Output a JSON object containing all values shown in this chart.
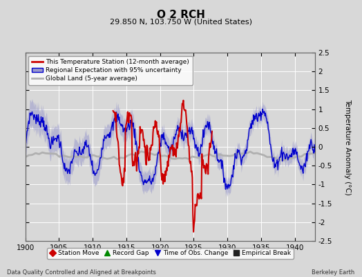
{
  "title": "O 2 RCH",
  "subtitle": "29.850 N, 103.750 W (United States)",
  "ylabel": "Temperature Anomaly (°C)",
  "footer_left": "Data Quality Controlled and Aligned at Breakpoints",
  "footer_right": "Berkeley Earth",
  "xlim": [
    1900,
    1943
  ],
  "ylim": [
    -2.5,
    2.5
  ],
  "yticks": [
    -2.5,
    -2,
    -1.5,
    -1,
    -0.5,
    0,
    0.5,
    1,
    1.5,
    2,
    2.5
  ],
  "xticks": [
    1900,
    1905,
    1910,
    1915,
    1920,
    1925,
    1930,
    1935,
    1940
  ],
  "bg_color": "#d8d8d8",
  "plot_bg_color": "#d8d8d8",
  "grid_color": "#ffffff",
  "station_color": "#cc0000",
  "regional_color": "#0000cc",
  "regional_fill_color": "#9999cc",
  "global_color": "#b0b0b0",
  "legend_items": [
    "This Temperature Station (12-month average)",
    "Regional Expectation with 95% uncertainty",
    "Global Land (5-year average)"
  ],
  "bottom_legend": [
    {
      "marker": "D",
      "color": "#cc0000",
      "label": "Station Move"
    },
    {
      "marker": "^",
      "color": "#008800",
      "label": "Record Gap"
    },
    {
      "marker": "v",
      "color": "#0000cc",
      "label": "Time of Obs. Change"
    },
    {
      "marker": "s",
      "color": "#222222",
      "label": "Empirical Break"
    }
  ]
}
